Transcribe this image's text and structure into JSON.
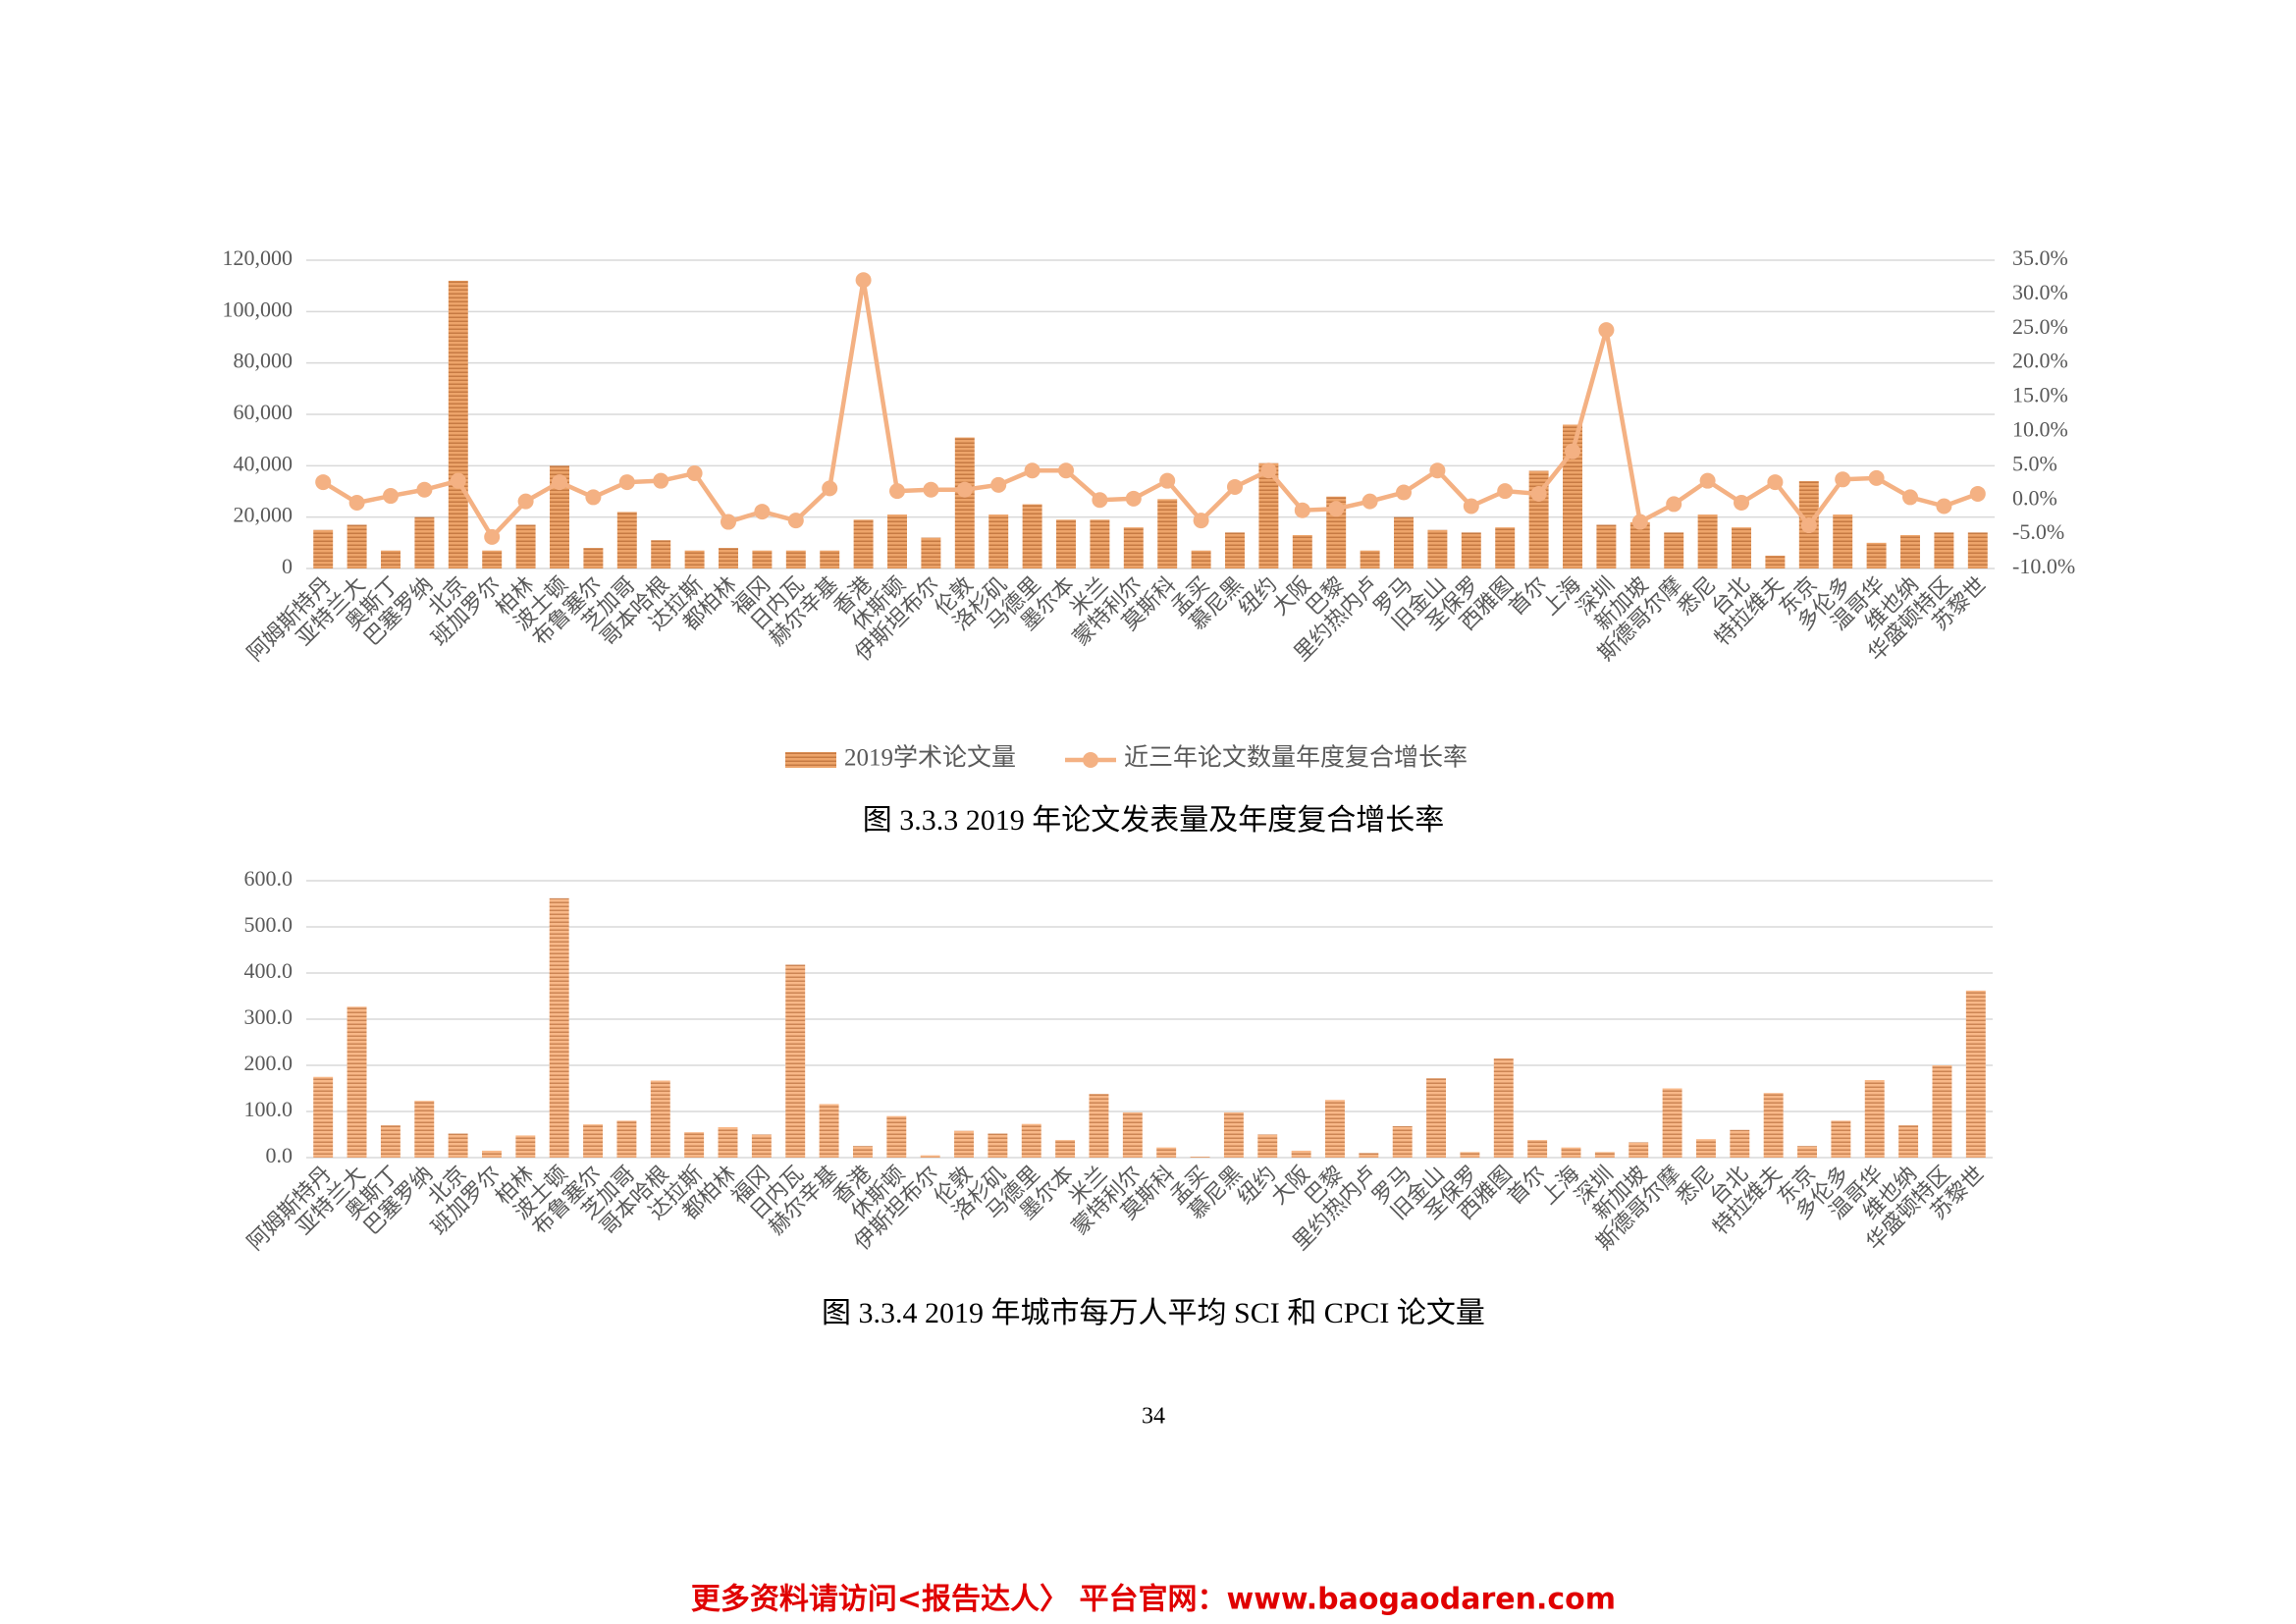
{
  "chart_data": [
    {
      "type": "combo",
      "categories": [
        "阿姆斯特丹",
        "亚特兰大",
        "奥斯丁",
        "巴塞罗纳",
        "北京",
        "班加罗尔",
        "柏林",
        "波士顿",
        "布鲁塞尔",
        "芝加哥",
        "哥本哈根",
        "达拉斯",
        "都柏林",
        "福冈",
        "日内瓦",
        "赫尔辛基",
        "香港",
        "休斯顿",
        "伊斯坦布尔",
        "伦敦",
        "洛杉矶",
        "马德里",
        "墨尔本",
        "米兰",
        "蒙特利尔",
        "莫斯科",
        "孟买",
        "慕尼黑",
        "纽约",
        "大阪",
        "巴黎",
        "里约热内卢",
        "罗马",
        "旧金山",
        "圣保罗",
        "西雅图",
        "首尔",
        "上海",
        "深圳",
        "新加坡",
        "斯德哥尔摩",
        "悉尼",
        "台北",
        "特拉维夫",
        "东京",
        "多伦多",
        "温哥华",
        "维也纳",
        "华盛顿特区",
        "苏黎世"
      ],
      "series": [
        {
          "name": "2019学术论文量",
          "type": "bar",
          "color": "#eda46a",
          "values": [
            15000,
            17000,
            7000,
            20000,
            112000,
            7000,
            17000,
            40000,
            8000,
            22000,
            11000,
            7000,
            8000,
            7000,
            7000,
            7000,
            19000,
            21000,
            12000,
            51000,
            21000,
            25000,
            19000,
            19000,
            16000,
            27000,
            7000,
            14000,
            41000,
            13000,
            28000,
            7000,
            20000,
            15000,
            14000,
            16000,
            38000,
            56000,
            17000,
            18000,
            14000,
            21000,
            16000,
            5000,
            34000,
            21000,
            10000,
            13000,
            14000,
            14000
          ]
        },
        {
          "name": "近三年论文数量年度复合增长率",
          "type": "line",
          "axis": "y2",
          "color": "#f4b183",
          "values": [
            2.6,
            -0.4,
            0.6,
            1.5,
            2.8,
            -5.4,
            -0.2,
            2.6,
            0.4,
            2.6,
            2.8,
            3.9,
            -3.2,
            -1.7,
            -3.0,
            1.7,
            32.1,
            1.3,
            1.5,
            1.5,
            2.2,
            4.3,
            4.3,
            0,
            0.2,
            2.8,
            -3.0,
            1.9,
            4.3,
            -1.5,
            -1.3,
            -0.2,
            1.1,
            4.3,
            -0.9,
            1.3,
            0.9,
            7.1,
            24.8,
            -3.2,
            -0.6,
            2.8,
            -0.4,
            2.6,
            -3.7,
            3.0,
            3.2,
            0.4,
            -0.9,
            0.9
          ]
        }
      ],
      "ylim": [
        0,
        120000
      ],
      "yticks": [
        0,
        {
          "value": 20000,
          "label": "20,000"
        },
        {
          "value": 40000,
          "label": "40,000"
        },
        {
          "value": 60000,
          "label": "60,000"
        },
        {
          "value": 80000,
          "label": "80,000"
        },
        {
          "value": 100000,
          "label": "100,000"
        },
        {
          "value": 120000,
          "label": "120,000"
        }
      ],
      "y2lim": [
        -10,
        35
      ],
      "y2ticks": [
        {
          "value": -10,
          "label": "-10.0%"
        },
        {
          "value": -5,
          "label": "-5.0%"
        },
        {
          "value": 0,
          "label": "0.0%"
        },
        {
          "value": 5,
          "label": "5.0%"
        },
        {
          "value": 10,
          "label": "10.0%"
        },
        {
          "value": 15,
          "label": "15.0%"
        },
        {
          "value": 20,
          "label": "20.0%"
        },
        {
          "value": 25,
          "label": "25.0%"
        },
        {
          "value": 30,
          "label": "30.0%"
        },
        {
          "value": 35,
          "label": "35.0%"
        }
      ],
      "grid": true,
      "legend": "bottom"
    },
    {
      "type": "bar",
      "categories": [
        "阿姆斯特丹",
        "亚特兰大",
        "奥斯丁",
        "巴塞罗纳",
        "北京",
        "班加罗尔",
        "柏林",
        "波士顿",
        "布鲁塞尔",
        "芝加哥",
        "哥本哈根",
        "达拉斯",
        "都柏林",
        "福冈",
        "日内瓦",
        "赫尔辛基",
        "香港",
        "休斯顿",
        "伊斯坦布尔",
        "伦敦",
        "洛杉矶",
        "马德里",
        "墨尔本",
        "米兰",
        "蒙特利尔",
        "莫斯科",
        "孟买",
        "慕尼黑",
        "纽约",
        "大阪",
        "巴黎",
        "里约热内卢",
        "罗马",
        "旧金山",
        "圣保罗",
        "西雅图",
        "首尔",
        "上海",
        "深圳",
        "新加坡",
        "斯德哥尔摩",
        "悉尼",
        "台北",
        "特拉维夫",
        "东京",
        "多伦多",
        "温哥华",
        "维也纳",
        "华盛顿特区",
        "苏黎世"
      ],
      "values": [
        175,
        327,
        70,
        123,
        52,
        15,
        48,
        562,
        72,
        80,
        167,
        55,
        66,
        50,
        418,
        116,
        25,
        90,
        5,
        58,
        52,
        73,
        38,
        138,
        98,
        22,
        2,
        98,
        50,
        15,
        125,
        10,
        68,
        172,
        12,
        215,
        38,
        22,
        12,
        33,
        150,
        40,
        60,
        140,
        25,
        80,
        168,
        70,
        200,
        362
      ],
      "color": "#f8b888",
      "ylim": [
        0,
        600
      ],
      "yticks": [
        {
          "value": 0,
          "label": "0.0"
        },
        {
          "value": 100,
          "label": "100.0"
        },
        {
          "value": 200,
          "label": "200.0"
        },
        {
          "value": 300,
          "label": "300.0"
        },
        {
          "value": 400,
          "label": "400.0"
        },
        {
          "value": 500,
          "label": "500.0"
        },
        {
          "value": 600,
          "label": "600.0"
        }
      ],
      "grid": true
    }
  ],
  "captions": [
    "图 3.3.3 2019 年论文发表量及年度复合增长率",
    "图 3.3.4 2019 年城市每万人平均 SCI 和 CPCI 论文量"
  ],
  "page_number": "34",
  "footer": "更多资料请访问<报告达人〉 平台官网：www.baogaodaren.com"
}
